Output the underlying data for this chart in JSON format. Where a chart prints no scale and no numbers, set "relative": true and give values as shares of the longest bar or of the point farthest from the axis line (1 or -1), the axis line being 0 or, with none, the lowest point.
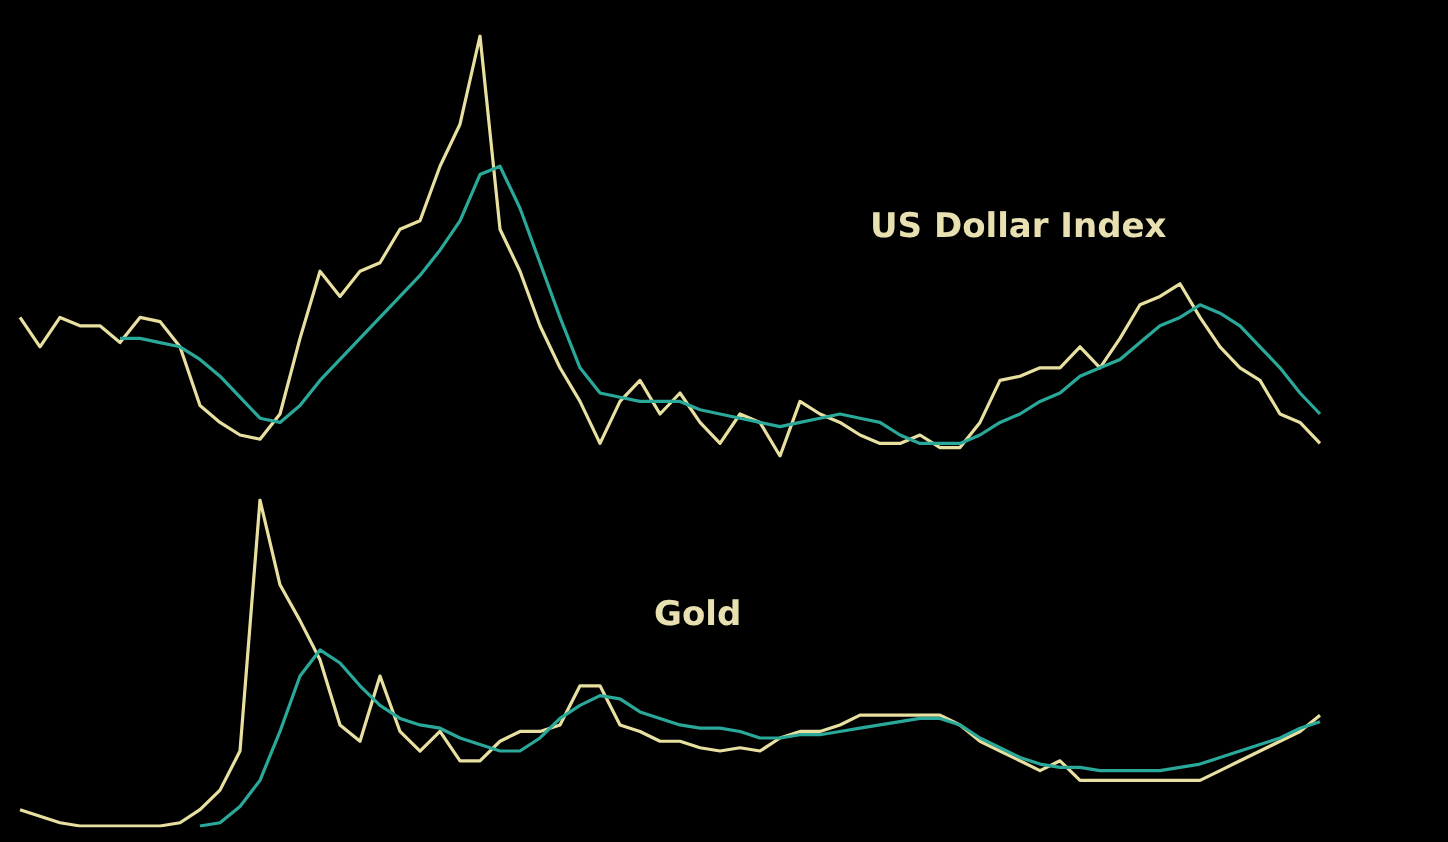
{
  "chart_data": [
    {
      "type": "line",
      "title": "US Dollar Index",
      "relative": true,
      "marker": "none",
      "categories": [
        null,
        null,
        null,
        null,
        null,
        null,
        null,
        null,
        null,
        null,
        null,
        null,
        null,
        null,
        null,
        null,
        null,
        null,
        null,
        null,
        null,
        null,
        null,
        null,
        null,
        null,
        null,
        null,
        null,
        null,
        null,
        null,
        null,
        null,
        null,
        null,
        null,
        null,
        null,
        null,
        null,
        null,
        null,
        null,
        null,
        null,
        null,
        null,
        null,
        null,
        null,
        null,
        null,
        null,
        null,
        null,
        null,
        null,
        null,
        null,
        null,
        null,
        null,
        null,
        null,
        null
      ],
      "series": [
        {
          "color": "#e8e0a0",
          "values": [
            0.33,
            0.26,
            0.33,
            0.31,
            0.31,
            0.27,
            0.33,
            0.32,
            0.26,
            0.12,
            0.08,
            0.05,
            0.04,
            0.1,
            0.28,
            0.44,
            0.38,
            0.44,
            0.46,
            0.54,
            0.56,
            0.69,
            0.79,
            1,
            0.54,
            0.44,
            0.31,
            0.21,
            0.13,
            0.03,
            0.13,
            0.18,
            0.1,
            0.15,
            0.08,
            0.03,
            0.1,
            0.08,
            0,
            0.13,
            0.1,
            0.08,
            0.05,
            0.03,
            0.03,
            0.05,
            0.02,
            0.02,
            0.08,
            0.18,
            0.19,
            0.21,
            0.21,
            0.26,
            0.21,
            0.28,
            0.36,
            0.38,
            0.41,
            0.33,
            0.26,
            0.21,
            0.18,
            0.1,
            0.08,
            0.03
          ]
        },
        {
          "color": "#2aa89a",
          "values": [
            null,
            null,
            null,
            null,
            null,
            0.28,
            0.28,
            0.27,
            0.26,
            0.23,
            0.19,
            0.14,
            0.09,
            0.08,
            0.12,
            0.18,
            0.23,
            0.28,
            0.33,
            0.38,
            0.43,
            0.49,
            0.56,
            0.67,
            0.69,
            0.59,
            0.46,
            0.33,
            0.21,
            0.15,
            0.14,
            0.13,
            0.13,
            0.13,
            0.11,
            0.1,
            0.09,
            0.08,
            0.07,
            0.08,
            0.09,
            0.1,
            0.09,
            0.08,
            0.05,
            0.03,
            0.03,
            0.03,
            0.05,
            0.08,
            0.1,
            0.13,
            0.15,
            0.19,
            0.21,
            0.23,
            0.27,
            0.31,
            0.33,
            0.36,
            0.34,
            0.31,
            0.26,
            0.21,
            0.15,
            0.1
          ]
        }
      ]
    },
    {
      "type": "line",
      "title": "Gold",
      "relative": true,
      "marker": "none",
      "categories": [
        null,
        null,
        null,
        null,
        null,
        null,
        null,
        null,
        null,
        null,
        null,
        null,
        null,
        null,
        null,
        null,
        null,
        null,
        null,
        null,
        null,
        null,
        null,
        null,
        null,
        null,
        null,
        null,
        null,
        null,
        null,
        null,
        null,
        null,
        null,
        null,
        null,
        null,
        null,
        null,
        null,
        null,
        null,
        null,
        null,
        null,
        null,
        null,
        null,
        null,
        null,
        null,
        null,
        null,
        null,
        null,
        null,
        null,
        null,
        null,
        null,
        null,
        null,
        null,
        null,
        null
      ],
      "series": [
        {
          "color": "#e8e0a0",
          "values": [
            0.05,
            0.03,
            0.01,
            0,
            0,
            0,
            0,
            0,
            0.01,
            0.05,
            0.11,
            0.23,
            1,
            0.74,
            0.63,
            0.51,
            0.31,
            0.26,
            0.46,
            0.29,
            0.23,
            0.29,
            0.2,
            0.2,
            0.26,
            0.29,
            0.29,
            0.31,
            0.43,
            0.43,
            0.31,
            0.29,
            0.26,
            0.26,
            0.24,
            0.23,
            0.24,
            0.23,
            0.27,
            0.29,
            0.29,
            0.31,
            0.34,
            0.34,
            0.34,
            0.34,
            0.34,
            0.31,
            0.26,
            0.23,
            0.2,
            0.17,
            0.2,
            0.14,
            0.14,
            0.14,
            0.14,
            0.14,
            0.14,
            0.14,
            0.17,
            0.2,
            0.23,
            0.26,
            0.29,
            0.34
          ]
        },
        {
          "color": "#2aa89a",
          "values": [
            null,
            null,
            null,
            null,
            null,
            null,
            null,
            null,
            null,
            0,
            0.01,
            0.06,
            0.14,
            0.29,
            0.46,
            0.54,
            0.5,
            0.43,
            0.37,
            0.33,
            0.31,
            0.3,
            0.27,
            0.25,
            0.23,
            0.23,
            0.27,
            0.33,
            0.37,
            0.4,
            0.39,
            0.35,
            0.33,
            0.31,
            0.3,
            0.3,
            0.29,
            0.27,
            0.27,
            0.28,
            0.28,
            0.29,
            0.3,
            0.31,
            0.32,
            0.33,
            0.33,
            0.31,
            0.27,
            0.24,
            0.21,
            0.19,
            0.18,
            0.18,
            0.17,
            0.17,
            0.17,
            0.17,
            0.18,
            0.19,
            0.21,
            0.23,
            0.25,
            0.27,
            0.3,
            0.32
          ]
        }
      ]
    }
  ]
}
